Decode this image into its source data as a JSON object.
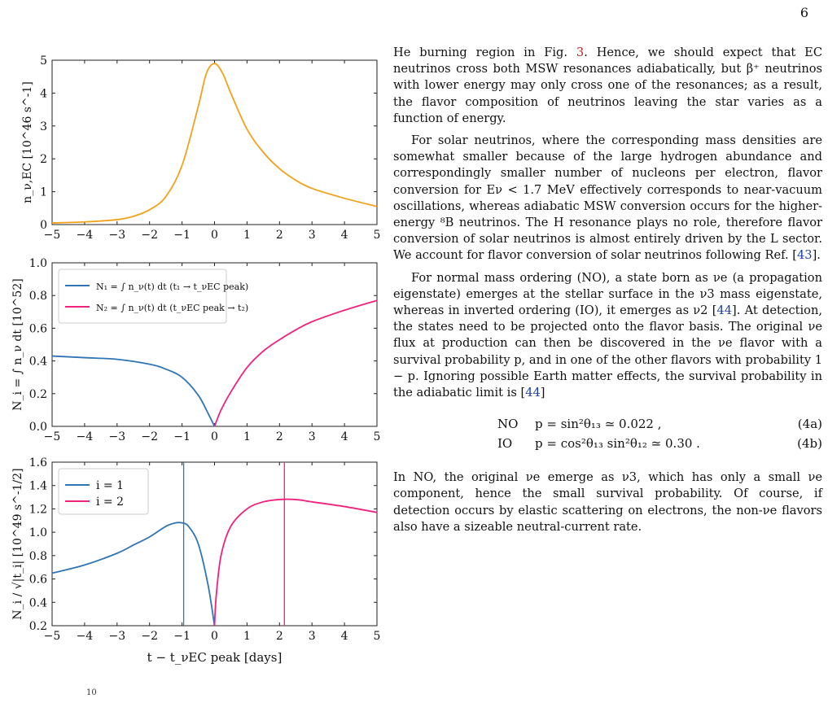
{
  "page": {
    "number": "6"
  },
  "figure": {
    "panel_top": {
      "ylabel": "n_ν,EC [10^46 s^-1]",
      "yticks": [
        "0",
        "1",
        "2",
        "3",
        "4",
        "5"
      ],
      "xticks": [
        "−5",
        "−4",
        "−3",
        "−2",
        "−1",
        "0",
        "1",
        "2",
        "3",
        "4",
        "5"
      ],
      "series_color": "#f2a21a"
    },
    "panel_mid": {
      "ylabel": "N_i = ∫ n_ν dt [10^52]",
      "yticks": [
        "0.0",
        "0.2",
        "0.4",
        "0.6",
        "0.8",
        "1.0"
      ],
      "xticks": [
        "−5",
        "−4",
        "−3",
        "−2",
        "−1",
        "0",
        "1",
        "2",
        "3",
        "4",
        "5"
      ],
      "legend": [
        "N₁ = ∫ n_ν(t) dt  (t₁ → t_νEC peak)",
        "N₂ = ∫ n_ν(t) dt  (t_νEC peak → t₂)"
      ],
      "colors": [
        "#2f75b5",
        "#f0227e"
      ]
    },
    "panel_bot": {
      "ylabel": "N_i / √|t_i| [10^49 s^-1/2]",
      "yticks": [
        "0.2",
        "0.4",
        "0.6",
        "0.8",
        "1.0",
        "1.2",
        "1.4",
        "1.6"
      ],
      "xticks": [
        "−5",
        "−4",
        "−3",
        "−2",
        "−1",
        "0",
        "1",
        "2",
        "3",
        "4",
        "5"
      ],
      "legend": [
        "i = 1",
        "i = 2"
      ],
      "xlabel": "t − t_νEC peak [days]",
      "colors": [
        "#2f75b5",
        "#f0227e"
      ]
    },
    "cut_text": "10"
  },
  "chart_data": [
    {
      "type": "line",
      "xlim": [
        -5,
        5
      ],
      "ylim": [
        0,
        5
      ],
      "series": [
        {
          "x": [
            -5,
            -4,
            -3,
            -2.5,
            -2,
            -1.5,
            -1,
            -0.5,
            -0.25,
            0,
            0.25,
            0.5,
            1,
            1.5,
            2,
            2.5,
            3,
            4,
            5
          ],
          "values": [
            0.05,
            0.08,
            0.15,
            0.25,
            0.45,
            0.85,
            1.8,
            3.6,
            4.6,
            4.9,
            4.6,
            4.0,
            2.9,
            2.2,
            1.7,
            1.35,
            1.1,
            0.8,
            0.55
          ]
        }
      ]
    },
    {
      "type": "line",
      "xlim": [
        -5,
        5
      ],
      "ylim": [
        0,
        1
      ],
      "series": [
        {
          "x": [
            -5,
            -4,
            -3,
            -2,
            -1.5,
            -1,
            -0.5,
            -0.2,
            0
          ],
          "values": [
            0.43,
            0.42,
            0.41,
            0.38,
            0.35,
            0.3,
            0.19,
            0.08,
            0.0
          ]
        },
        {
          "x": [
            0,
            0.2,
            0.5,
            1,
            1.5,
            2,
            2.5,
            3,
            4,
            5
          ],
          "values": [
            0.0,
            0.1,
            0.21,
            0.36,
            0.46,
            0.53,
            0.59,
            0.64,
            0.71,
            0.77
          ]
        }
      ]
    },
    {
      "type": "line",
      "xlim": [
        -5,
        5
      ],
      "ylim": [
        0.2,
        1.6
      ],
      "series": [
        {
          "x": [
            -5,
            -4,
            -3,
            -2.5,
            -2,
            -1.5,
            -1.2,
            -1,
            -0.8,
            -0.5,
            -0.2,
            0
          ],
          "values": [
            0.65,
            0.72,
            0.82,
            0.89,
            0.96,
            1.05,
            1.08,
            1.08,
            1.05,
            0.9,
            0.55,
            0.2
          ]
        },
        {
          "x": [
            0,
            0.05,
            0.2,
            0.5,
            1,
            1.5,
            2,
            2.5,
            3,
            4,
            5
          ],
          "values": [
            0.2,
            0.45,
            0.8,
            1.05,
            1.2,
            1.26,
            1.28,
            1.28,
            1.26,
            1.22,
            1.17
          ]
        }
      ],
      "vlines": [
        -0.95,
        2.15
      ]
    }
  ],
  "text": {
    "p1": "He burning region in Fig. 3. Hence, we should expect that EC neutrinos cross both MSW resonances adiabatically, but β⁺ neutrinos with lower energy may only cross one of the resonances; as a result, the flavor composition of neutrinos leaving the star varies as a function of energy.",
    "p2": "For solar neutrinos, where the corresponding mass densities are somewhat smaller because of the large hydrogen abundance and correspondingly smaller number of nucleons per electron, flavor conversion for Eν < 1.7 MeV effectively corresponds to near-vacuum oscillations, whereas adiabatic MSW conversion occurs for the higher-energy ⁸B neutrinos. The H resonance plays no role, therefore flavor conversion of solar neutrinos is almost entirely driven by the L sector. We account for flavor conversion of solar neutrinos following Ref. [43].",
    "p3": "For normal mass ordering (NO), a state born as νe (a propagation eigenstate) emerges at the stellar surface in the ν3 mass eigenstate, whereas in inverted ordering (IO), it emerges as ν2 [44]. At detection, the states need to be projected onto the flavor basis. The original νe flux at production can then be discovered in the νe flavor with a survival probability p, and in one of the other flavors with probability 1 − p. Ignoring possible Earth matter effects, the survival probability in the adiabatic limit is [44]",
    "eq_a_label": "NO",
    "eq_a": "p  =  sin²θ₁₃ ≃ 0.022 ,",
    "eq_a_num": "(4a)",
    "eq_b_label": "IO",
    "eq_b": "p  =  cos²θ₁₃ sin²θ₁₂ ≃ 0.30 .",
    "eq_b_num": "(4b)",
    "p4": "In NO, the original νe emerge as ν3, which has only a small νe component, hence the small survival probability. Of course, if detection occurs by elastic scattering on electrons, the non-νe flavors also have a sizeable neutral-current rate."
  }
}
